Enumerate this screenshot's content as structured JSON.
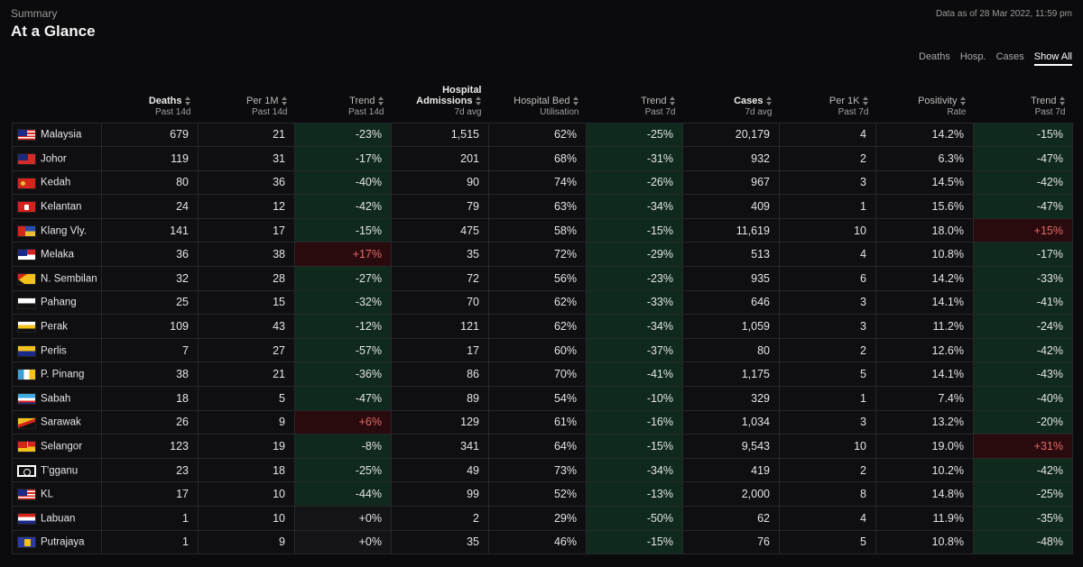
{
  "header": {
    "summary_label": "Summary",
    "title": "At a Glance",
    "data_asof": "Data as of 28 Mar 2022, 11:59 pm"
  },
  "filters": [
    {
      "label": "Deaths",
      "active": false
    },
    {
      "label": "Hosp.",
      "active": false
    },
    {
      "label": "Cases",
      "active": false
    },
    {
      "label": "Show All",
      "active": true
    }
  ],
  "columns": [
    {
      "main": "Deaths",
      "sub": "Past 14d",
      "bold": true
    },
    {
      "main": "Per 1M",
      "sub": "Past 14d",
      "bold": false
    },
    {
      "main": "Trend",
      "sub": "Past 14d",
      "bold": false
    },
    {
      "main": "Hospital Admissions",
      "sub": "7d avg",
      "bold": true
    },
    {
      "main": "Hospital Bed",
      "sub": "Utilisation",
      "bold": false
    },
    {
      "main": "Trend",
      "sub": "Past 7d",
      "bold": false
    },
    {
      "main": "Cases",
      "sub": "7d avg",
      "bold": true
    },
    {
      "main": "Per 1K",
      "sub": "Past 7d",
      "bold": false
    },
    {
      "main": "Positivity",
      "sub": "Rate",
      "bold": false
    },
    {
      "main": "Trend",
      "sub": "Past 7d",
      "bold": false
    }
  ],
  "rows": [
    {
      "flag": "malaysia",
      "state": "Malaysia",
      "deaths": "679",
      "per1m": "21",
      "trend14": "-23%",
      "hosp": "1,515",
      "bed": "62%",
      "trend7h": "-25%",
      "cases": "20,179",
      "per1k": "4",
      "pos": "14.2%",
      "trend7c": "-15%"
    },
    {
      "flag": "johor",
      "state": "Johor",
      "deaths": "119",
      "per1m": "31",
      "trend14": "-17%",
      "hosp": "201",
      "bed": "68%",
      "trend7h": "-31%",
      "cases": "932",
      "per1k": "2",
      "pos": "6.3%",
      "trend7c": "-47%"
    },
    {
      "flag": "kedah",
      "state": "Kedah",
      "deaths": "80",
      "per1m": "36",
      "trend14": "-40%",
      "hosp": "90",
      "bed": "74%",
      "trend7h": "-26%",
      "cases": "967",
      "per1k": "3",
      "pos": "14.5%",
      "trend7c": "-42%"
    },
    {
      "flag": "kelantan",
      "state": "Kelantan",
      "deaths": "24",
      "per1m": "12",
      "trend14": "-42%",
      "hosp": "79",
      "bed": "63%",
      "trend7h": "-34%",
      "cases": "409",
      "per1k": "1",
      "pos": "15.6%",
      "trend7c": "-47%"
    },
    {
      "flag": "klang",
      "state": "Klang Vly.",
      "deaths": "141",
      "per1m": "17",
      "trend14": "-15%",
      "hosp": "475",
      "bed": "58%",
      "trend7h": "-15%",
      "cases": "11,619",
      "per1k": "10",
      "pos": "18.0%",
      "trend7c": "+15%"
    },
    {
      "flag": "melaka",
      "state": "Melaka",
      "deaths": "36",
      "per1m": "38",
      "trend14": "+17%",
      "hosp": "35",
      "bed": "72%",
      "trend7h": "-29%",
      "cases": "513",
      "per1k": "4",
      "pos": "10.8%",
      "trend7c": "-17%"
    },
    {
      "flag": "nsembilan",
      "state": "N. Sembilan",
      "deaths": "32",
      "per1m": "28",
      "trend14": "-27%",
      "hosp": "72",
      "bed": "56%",
      "trend7h": "-23%",
      "cases": "935",
      "per1k": "6",
      "pos": "14.2%",
      "trend7c": "-33%"
    },
    {
      "flag": "pahang",
      "state": "Pahang",
      "deaths": "25",
      "per1m": "15",
      "trend14": "-32%",
      "hosp": "70",
      "bed": "62%",
      "trend7h": "-33%",
      "cases": "646",
      "per1k": "3",
      "pos": "14.1%",
      "trend7c": "-41%"
    },
    {
      "flag": "perak",
      "state": "Perak",
      "deaths": "109",
      "per1m": "43",
      "trend14": "-12%",
      "hosp": "121",
      "bed": "62%",
      "trend7h": "-34%",
      "cases": "1,059",
      "per1k": "3",
      "pos": "11.2%",
      "trend7c": "-24%"
    },
    {
      "flag": "perlis",
      "state": "Perlis",
      "deaths": "7",
      "per1m": "27",
      "trend14": "-57%",
      "hosp": "17",
      "bed": "60%",
      "trend7h": "-37%",
      "cases": "80",
      "per1k": "2",
      "pos": "12.6%",
      "trend7c": "-42%"
    },
    {
      "flag": "penang",
      "state": "P. Pinang",
      "deaths": "38",
      "per1m": "21",
      "trend14": "-36%",
      "hosp": "86",
      "bed": "70%",
      "trend7h": "-41%",
      "cases": "1,175",
      "per1k": "5",
      "pos": "14.1%",
      "trend7c": "-43%"
    },
    {
      "flag": "sabah",
      "state": "Sabah",
      "deaths": "18",
      "per1m": "5",
      "trend14": "-47%",
      "hosp": "89",
      "bed": "54%",
      "trend7h": "-10%",
      "cases": "329",
      "per1k": "1",
      "pos": "7.4%",
      "trend7c": "-40%"
    },
    {
      "flag": "sarawak",
      "state": "Sarawak",
      "deaths": "26",
      "per1m": "9",
      "trend14": "+6%",
      "hosp": "129",
      "bed": "61%",
      "trend7h": "-16%",
      "cases": "1,034",
      "per1k": "3",
      "pos": "13.2%",
      "trend7c": "-20%"
    },
    {
      "flag": "selangor",
      "state": "Selangor",
      "deaths": "123",
      "per1m": "19",
      "trend14": "-8%",
      "hosp": "341",
      "bed": "64%",
      "trend7h": "-15%",
      "cases": "9,543",
      "per1k": "10",
      "pos": "19.0%",
      "trend7c": "+31%"
    },
    {
      "flag": "terengganu",
      "state": "T'gganu",
      "deaths": "23",
      "per1m": "18",
      "trend14": "-25%",
      "hosp": "49",
      "bed": "73%",
      "trend7h": "-34%",
      "cases": "419",
      "per1k": "2",
      "pos": "10.2%",
      "trend7c": "-42%"
    },
    {
      "flag": "kl",
      "state": "KL",
      "deaths": "17",
      "per1m": "10",
      "trend14": "-44%",
      "hosp": "99",
      "bed": "52%",
      "trend7h": "-13%",
      "cases": "2,000",
      "per1k": "8",
      "pos": "14.8%",
      "trend7c": "-25%"
    },
    {
      "flag": "labuan",
      "state": "Labuan",
      "deaths": "1",
      "per1m": "10",
      "trend14": "+0%",
      "hosp": "2",
      "bed": "29%",
      "trend7h": "-50%",
      "cases": "62",
      "per1k": "4",
      "pos": "11.9%",
      "trend7c": "-35%"
    },
    {
      "flag": "putrajaya",
      "state": "Putrajaya",
      "deaths": "1",
      "per1m": "9",
      "trend14": "+0%",
      "hosp": "35",
      "bed": "46%",
      "trend7h": "-15%",
      "cases": "76",
      "per1k": "5",
      "pos": "10.8%",
      "trend7c": "-48%"
    }
  ]
}
